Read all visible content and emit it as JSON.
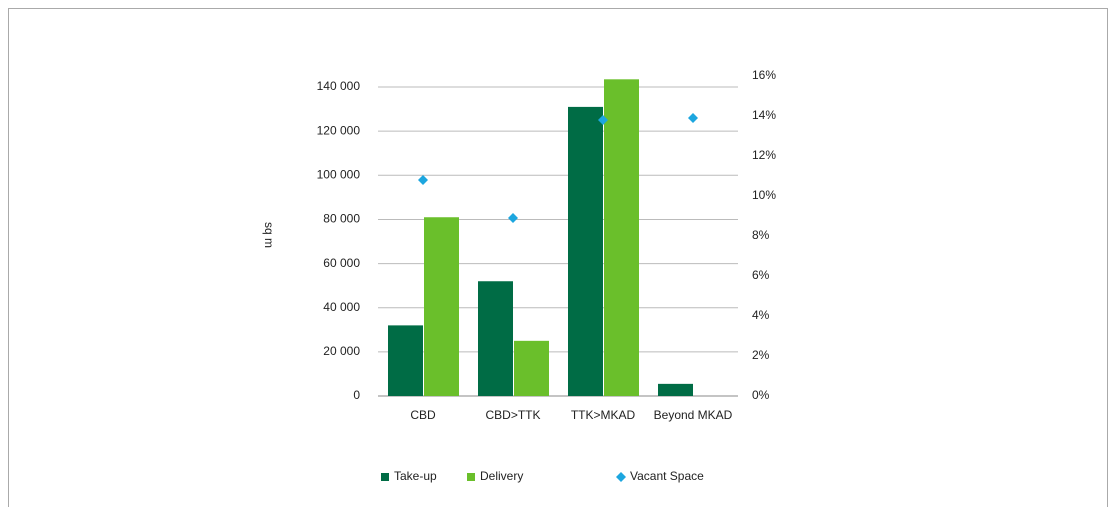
{
  "chart_data": {
    "type": "bar",
    "y_label": "sq m",
    "categories": [
      "CBD",
      "CBD>TTK",
      "TTK>MKAD",
      "Beyond MKAD"
    ],
    "series": [
      {
        "name": "Take-up",
        "color": "#006c45",
        "values": [
          32000,
          52000,
          131000,
          5500
        ]
      },
      {
        "name": "Delivery",
        "color": "#6abf2b",
        "values": [
          81000,
          25000,
          143500,
          null
        ]
      },
      {
        "name": "Vacant Space",
        "color": "#1ca6df",
        "type": "scatter",
        "axis": "y2",
        "values": [
          10.8,
          8.9,
          13.8,
          13.9
        ]
      }
    ],
    "ylim": [
      0,
      145000
    ],
    "yticks": [
      0,
      {
        "value": 20000,
        "label": "20 000"
      },
      {
        "value": 40000,
        "label": "40 000"
      },
      {
        "value": 60000,
        "label": "60 000"
      },
      {
        "value": 80000,
        "label": "80 000"
      },
      {
        "value": 100000,
        "label": "100 000"
      },
      {
        "value": 120000,
        "label": "120 000"
      },
      {
        "value": 140000,
        "label": "140 000"
      }
    ],
    "y2lim": [
      0,
      16
    ],
    "y2ticks": [
      {
        "value": 0,
        "label": "0%"
      },
      {
        "value": 2,
        "label": "2%"
      },
      {
        "value": 4,
        "label": "4%"
      },
      {
        "value": 6,
        "label": "6%"
      },
      {
        "value": 8,
        "label": "8%"
      },
      {
        "value": 10,
        "label": "10%"
      },
      {
        "value": 12,
        "label": "12%"
      },
      {
        "value": 14,
        "label": "14%"
      },
      {
        "value": 16,
        "label": "16%"
      }
    ],
    "grid": true,
    "legend": "bottom"
  }
}
